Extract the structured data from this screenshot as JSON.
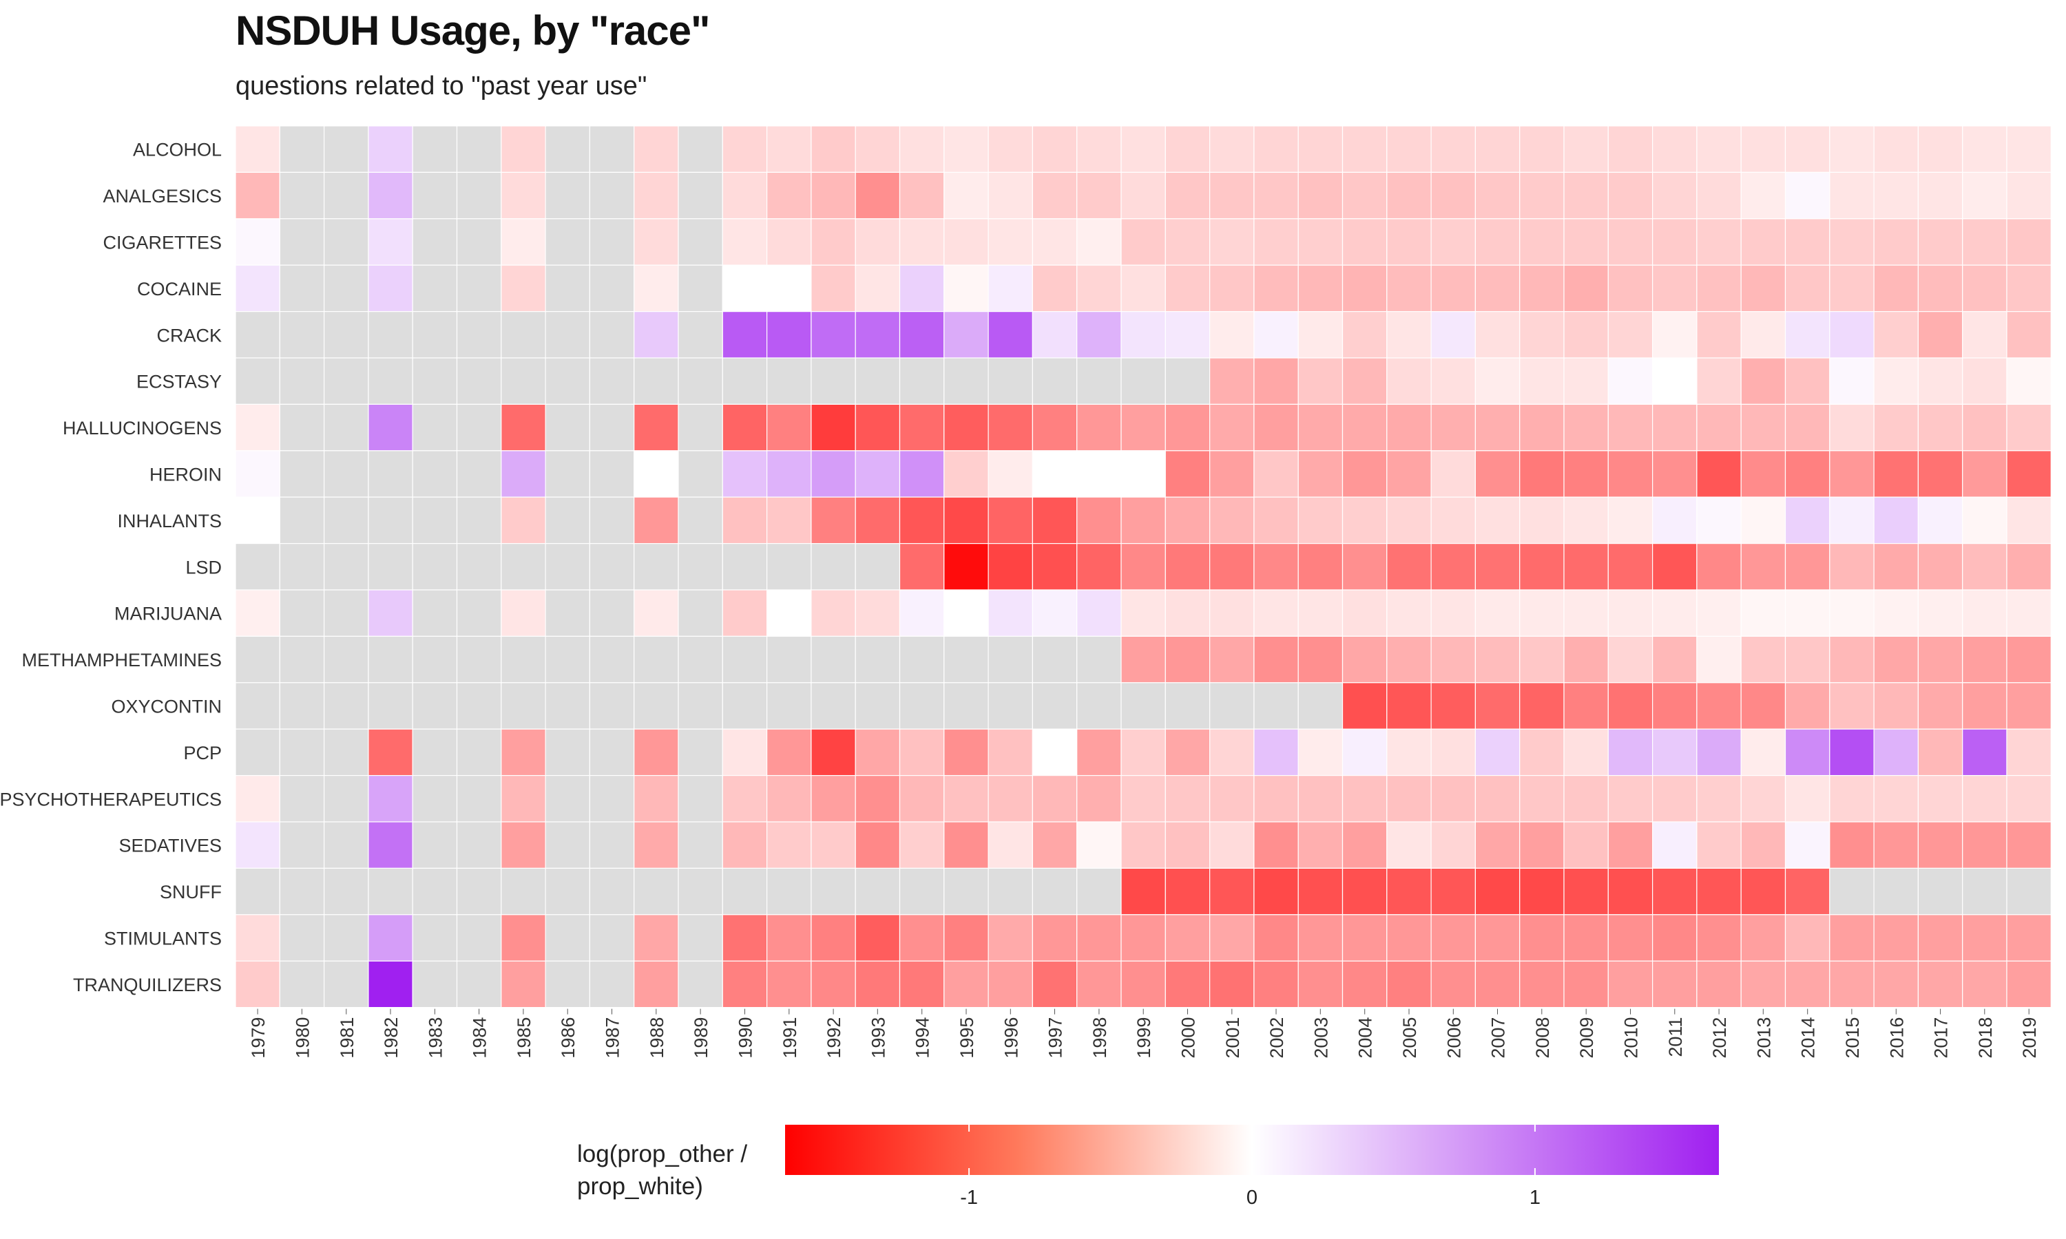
{
  "title": "NSDUH Usage, by \"race\"",
  "subtitle": "questions related to \"past year use\"",
  "colors": {
    "low": "#ff0000",
    "mid": "#ffffff",
    "high": "#a020f0",
    "missing": "#dddddd"
  },
  "chart_data": {
    "type": "heatmap",
    "title": "NSDUH Usage, by \"race\"",
    "subtitle": "questions related to \"past year use\"",
    "x": [
      "1979",
      "1980",
      "1981",
      "1982",
      "1983",
      "1984",
      "1985",
      "1986",
      "1987",
      "1988",
      "1989",
      "1990",
      "1991",
      "1992",
      "1993",
      "1994",
      "1995",
      "1996",
      "1997",
      "1998",
      "1999",
      "2000",
      "2001",
      "2002",
      "2003",
      "2004",
      "2005",
      "2006",
      "2007",
      "2008",
      "2009",
      "2010",
      "2011",
      "2012",
      "2013",
      "2014",
      "2015",
      "2016",
      "2017",
      "2018",
      "2019"
    ],
    "y": [
      "ALCOHOL",
      "ANALGESICS",
      "CIGARETTES",
      "COCAINE",
      "CRACK",
      "ECSTASY",
      "HALLUCINOGENS",
      "HEROIN",
      "INHALANTS",
      "LSD",
      "MARIJUANA",
      "METHAMPHETAMINES",
      "OXYCONTIN",
      "PCP",
      "PSYCHOTHERAPEUTICS",
      "SEDATIVES",
      "SNUFF",
      "STIMULANTS",
      "TRANQUILIZERS"
    ],
    "values": [
      [
        -0.08,
        null,
        null,
        0.2,
        null,
        null,
        -0.15,
        null,
        null,
        -0.15,
        null,
        -0.15,
        -0.12,
        -0.2,
        -0.15,
        -0.1,
        -0.08,
        -0.12,
        -0.15,
        -0.12,
        -0.1,
        -0.15,
        -0.12,
        -0.15,
        -0.15,
        -0.15,
        -0.15,
        -0.15,
        -0.15,
        -0.15,
        -0.12,
        -0.15,
        -0.12,
        -0.1,
        -0.1,
        -0.1,
        -0.08,
        -0.1,
        -0.1,
        -0.08,
        -0.08
      ],
      [
        -0.3,
        null,
        null,
        0.35,
        null,
        null,
        -0.12,
        null,
        null,
        -0.15,
        null,
        -0.12,
        -0.25,
        -0.3,
        -0.55,
        -0.25,
        -0.05,
        -0.08,
        -0.2,
        -0.2,
        -0.12,
        -0.22,
        -0.22,
        -0.22,
        -0.25,
        -0.22,
        -0.25,
        -0.25,
        -0.22,
        -0.2,
        -0.2,
        -0.2,
        -0.15,
        -0.12,
        -0.05,
        0.02,
        -0.08,
        -0.08,
        -0.08,
        -0.05,
        -0.08
      ],
      [
        0.02,
        null,
        null,
        0.12,
        null,
        null,
        -0.05,
        null,
        null,
        -0.12,
        null,
        -0.08,
        -0.12,
        -0.2,
        -0.12,
        -0.1,
        -0.1,
        -0.08,
        -0.08,
        -0.04,
        -0.2,
        -0.18,
        -0.15,
        -0.18,
        -0.18,
        -0.2,
        -0.2,
        -0.18,
        -0.2,
        -0.2,
        -0.2,
        -0.2,
        -0.2,
        -0.18,
        -0.2,
        -0.2,
        -0.18,
        -0.2,
        -0.2,
        -0.2,
        -0.22
      ],
      [
        0.1,
        null,
        null,
        0.2,
        null,
        null,
        -0.15,
        null,
        null,
        -0.05,
        null,
        0.0,
        0.0,
        -0.2,
        -0.08,
        0.2,
        -0.02,
        0.06,
        -0.2,
        -0.15,
        -0.1,
        -0.2,
        -0.22,
        -0.28,
        -0.3,
        -0.32,
        -0.28,
        -0.28,
        -0.28,
        -0.3,
        -0.35,
        -0.25,
        -0.22,
        -0.25,
        -0.3,
        -0.22,
        -0.2,
        -0.3,
        -0.28,
        -0.25,
        -0.22
      ],
      [
        null,
        null,
        null,
        null,
        null,
        null,
        null,
        null,
        null,
        0.25,
        null,
        1.1,
        1.1,
        0.95,
        0.95,
        1.05,
        0.45,
        1.1,
        0.12,
        0.4,
        0.1,
        0.08,
        -0.05,
        0.04,
        -0.06,
        -0.18,
        -0.08,
        0.08,
        -0.1,
        -0.15,
        -0.18,
        -0.15,
        -0.03,
        -0.2,
        -0.06,
        0.1,
        0.15,
        -0.18,
        -0.35,
        -0.08,
        -0.25
      ],
      [
        null,
        null,
        null,
        null,
        null,
        null,
        null,
        null,
        null,
        null,
        null,
        null,
        null,
        null,
        null,
        null,
        null,
        null,
        null,
        null,
        null,
        null,
        -0.35,
        -0.4,
        -0.22,
        -0.3,
        -0.12,
        -0.1,
        -0.05,
        -0.08,
        -0.08,
        0.02,
        0.0,
        -0.15,
        -0.35,
        -0.25,
        0.02,
        -0.05,
        -0.08,
        -0.1,
        -0.02
      ],
      [
        -0.05,
        null,
        null,
        0.75,
        null,
        null,
        -0.8,
        null,
        null,
        -0.8,
        null,
        -0.85,
        -0.65,
        -1.15,
        -0.95,
        -0.8,
        -0.9,
        -0.8,
        -0.65,
        -0.5,
        -0.45,
        -0.5,
        -0.38,
        -0.45,
        -0.38,
        -0.38,
        -0.38,
        -0.35,
        -0.35,
        -0.35,
        -0.32,
        -0.3,
        -0.3,
        -0.3,
        -0.3,
        -0.3,
        -0.12,
        -0.2,
        -0.22,
        -0.25,
        -0.2
      ],
      [
        0.02,
        null,
        null,
        null,
        null,
        null,
        0.45,
        null,
        null,
        0.0,
        null,
        0.3,
        0.4,
        0.55,
        0.4,
        0.65,
        -0.18,
        -0.05,
        0.0,
        0.0,
        0.0,
        -0.65,
        -0.45,
        -0.22,
        -0.38,
        -0.5,
        -0.42,
        -0.12,
        -0.55,
        -0.7,
        -0.65,
        -0.6,
        -0.55,
        -0.95,
        -0.58,
        -0.65,
        -0.5,
        -0.75,
        -0.75,
        -0.48,
        -0.85
      ],
      [
        0.0,
        null,
        null,
        null,
        null,
        null,
        -0.2,
        null,
        null,
        -0.5,
        null,
        -0.25,
        -0.22,
        -0.65,
        -0.8,
        -0.95,
        -1.05,
        -0.85,
        -0.95,
        -0.55,
        -0.45,
        -0.38,
        -0.3,
        -0.25,
        -0.2,
        -0.18,
        -0.15,
        -0.12,
        -0.1,
        -0.1,
        -0.08,
        -0.05,
        0.05,
        0.02,
        -0.02,
        0.2,
        0.05,
        0.22,
        0.04,
        -0.02,
        -0.08
      ],
      [
        null,
        null,
        null,
        null,
        null,
        null,
        null,
        null,
        null,
        null,
        null,
        null,
        null,
        null,
        null,
        -0.8,
        -1.55,
        -1.1,
        -1.0,
        -0.85,
        -0.6,
        -0.7,
        -0.7,
        -0.6,
        -0.65,
        -0.55,
        -0.75,
        -0.75,
        -0.75,
        -0.8,
        -0.8,
        -0.8,
        -0.95,
        -0.6,
        -0.5,
        -0.5,
        -0.3,
        -0.38,
        -0.35,
        -0.28,
        -0.35
      ],
      [
        -0.04,
        null,
        null,
        0.25,
        null,
        null,
        -0.08,
        null,
        null,
        -0.06,
        null,
        -0.2,
        0.0,
        -0.15,
        -0.12,
        0.04,
        0.0,
        0.1,
        0.04,
        0.12,
        -0.08,
        -0.1,
        -0.1,
        -0.08,
        -0.08,
        -0.1,
        -0.08,
        -0.08,
        -0.06,
        -0.06,
        -0.06,
        -0.06,
        -0.05,
        -0.04,
        -0.02,
        -0.02,
        -0.02,
        -0.03,
        -0.04,
        -0.05,
        -0.05
      ],
      [
        null,
        null,
        null,
        null,
        null,
        null,
        null,
        null,
        null,
        null,
        null,
        null,
        null,
        null,
        null,
        null,
        null,
        null,
        null,
        null,
        -0.45,
        -0.5,
        -0.4,
        -0.55,
        -0.55,
        -0.4,
        -0.35,
        -0.3,
        -0.28,
        -0.22,
        -0.35,
        -0.15,
        -0.3,
        -0.04,
        -0.22,
        -0.22,
        -0.3,
        -0.4,
        -0.4,
        -0.45,
        -0.48
      ],
      [
        null,
        null,
        null,
        null,
        null,
        null,
        null,
        null,
        null,
        null,
        null,
        null,
        null,
        null,
        null,
        null,
        null,
        null,
        null,
        null,
        null,
        null,
        null,
        null,
        null,
        -1.0,
        -0.95,
        -0.9,
        -0.8,
        -0.85,
        -0.65,
        -0.75,
        -0.65,
        -0.6,
        -0.6,
        -0.38,
        -0.25,
        -0.3,
        -0.38,
        -0.45,
        -0.45
      ],
      [
        null,
        null,
        null,
        -0.8,
        null,
        null,
        -0.45,
        null,
        null,
        -0.5,
        null,
        -0.08,
        -0.5,
        -1.1,
        -0.4,
        -0.25,
        -0.55,
        -0.25,
        0.0,
        -0.45,
        -0.18,
        -0.4,
        -0.15,
        0.3,
        -0.05,
        0.05,
        -0.08,
        -0.1,
        0.2,
        -0.2,
        -0.1,
        0.35,
        0.25,
        0.45,
        -0.05,
        0.7,
        1.2,
        0.4,
        -0.3,
        1.05,
        -0.15
      ],
      [
        -0.06,
        null,
        null,
        0.5,
        null,
        null,
        -0.3,
        null,
        null,
        -0.3,
        null,
        -0.22,
        -0.3,
        -0.45,
        -0.55,
        -0.3,
        -0.25,
        -0.25,
        -0.3,
        -0.35,
        -0.2,
        -0.22,
        -0.22,
        -0.25,
        -0.25,
        -0.25,
        -0.25,
        -0.25,
        -0.25,
        -0.22,
        -0.22,
        -0.2,
        -0.2,
        -0.18,
        -0.15,
        -0.08,
        -0.15,
        -0.15,
        -0.15,
        -0.15,
        -0.15
      ],
      [
        0.1,
        null,
        null,
        0.9,
        null,
        null,
        -0.45,
        null,
        null,
        -0.38,
        null,
        -0.3,
        -0.2,
        -0.2,
        -0.6,
        -0.18,
        -0.55,
        -0.08,
        -0.4,
        -0.02,
        -0.22,
        -0.25,
        -0.12,
        -0.55,
        -0.35,
        -0.45,
        -0.08,
        -0.15,
        -0.4,
        -0.45,
        -0.25,
        -0.45,
        0.05,
        -0.2,
        -0.3,
        0.03,
        -0.55,
        -0.5,
        -0.5,
        -0.5,
        -0.5
      ],
      [
        null,
        null,
        null,
        null,
        null,
        null,
        null,
        null,
        null,
        null,
        null,
        null,
        null,
        null,
        null,
        null,
        null,
        null,
        null,
        null,
        -1.05,
        -1.0,
        -0.95,
        -1.05,
        -1.0,
        -1.0,
        -0.95,
        -0.95,
        -1.05,
        -1.05,
        -1.0,
        -1.0,
        -0.95,
        -0.95,
        -0.95,
        -0.85,
        null,
        null,
        null,
        null,
        null
      ],
      [
        -0.12,
        null,
        null,
        0.55,
        null,
        null,
        -0.55,
        null,
        null,
        -0.4,
        null,
        -0.75,
        -0.55,
        -0.65,
        -0.9,
        -0.55,
        -0.65,
        -0.38,
        -0.5,
        -0.5,
        -0.5,
        -0.45,
        -0.4,
        -0.6,
        -0.5,
        -0.5,
        -0.5,
        -0.5,
        -0.5,
        -0.55,
        -0.55,
        -0.55,
        -0.6,
        -0.55,
        -0.45,
        -0.3,
        -0.45,
        -0.45,
        -0.45,
        -0.45,
        -0.45
      ],
      [
        -0.2,
        null,
        null,
        1.65,
        null,
        null,
        -0.45,
        null,
        null,
        -0.45,
        null,
        -0.65,
        -0.55,
        -0.6,
        -0.7,
        -0.7,
        -0.45,
        -0.45,
        -0.75,
        -0.5,
        -0.55,
        -0.7,
        -0.75,
        -0.65,
        -0.55,
        -0.6,
        -0.65,
        -0.55,
        -0.55,
        -0.55,
        -0.55,
        -0.45,
        -0.45,
        -0.45,
        -0.4,
        -0.4,
        -0.4,
        -0.4,
        -0.4,
        -0.4,
        -0.45
      ]
    ],
    "legend": {
      "title_line1": "log(prop_other /",
      "title_line2": "prop_white)",
      "ticks": [
        "-1",
        "0",
        "1"
      ],
      "range": [
        -1.65,
        1.65
      ],
      "placement": "bottom"
    }
  }
}
